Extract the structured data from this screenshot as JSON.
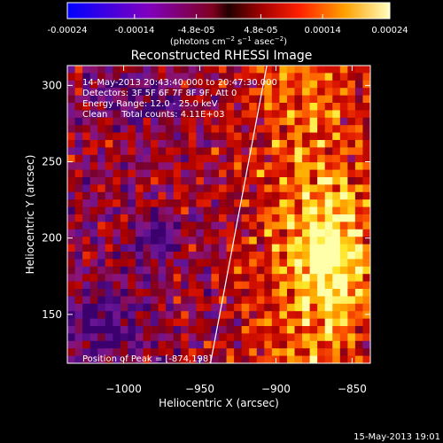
{
  "colorbar": {
    "ticks": [
      "-0.00024",
      "-0.00014",
      "-4.8e-05",
      "4.8e-05",
      "0.00014",
      "0.00024"
    ],
    "tick_values": [
      -0.00024,
      -0.00014,
      -4.8e-05,
      4.8e-05,
      0.00014,
      0.00024
    ],
    "range": [
      -0.00024,
      0.00024
    ],
    "units_label": "(photons cm-2 s-1 asec-2)"
  },
  "chart_data": {
    "type": "heatmap",
    "title": "Reconstructed RHESSI Image",
    "xlabel": "Heliocentric X (arcsec)",
    "ylabel": "Heliocentric Y (arcsec)",
    "xlim": [
      -1037,
      -838
    ],
    "ylim": [
      118,
      313
    ],
    "x_ticks": [
      -1000,
      -950,
      -900,
      -850
    ],
    "x_tick_labels": [
      "−1000",
      "−950",
      "−900",
      "−850"
    ],
    "y_ticks": [
      150,
      200,
      250,
      300
    ],
    "y_tick_labels": [
      "150",
      "200",
      "250",
      "300"
    ],
    "annotations": [
      "14-May-2013 20:43:40.000 to 20:47:30.000",
      "Detectors: 3F 5F 6F 7F 8F 9F, Att 0",
      "Energy Range: 12.0 - 25.0 keV",
      "Clean     Total counts: 4.11E+03"
    ],
    "peak_label": "Position of Peak = [-874,198]",
    "peak_position": [
      -874,
      198
    ],
    "limb_line": [
      [
        -943,
        118
      ],
      [
        -906,
        313
      ]
    ]
  },
  "footer": {
    "date": "15-May-2013 19:01"
  }
}
